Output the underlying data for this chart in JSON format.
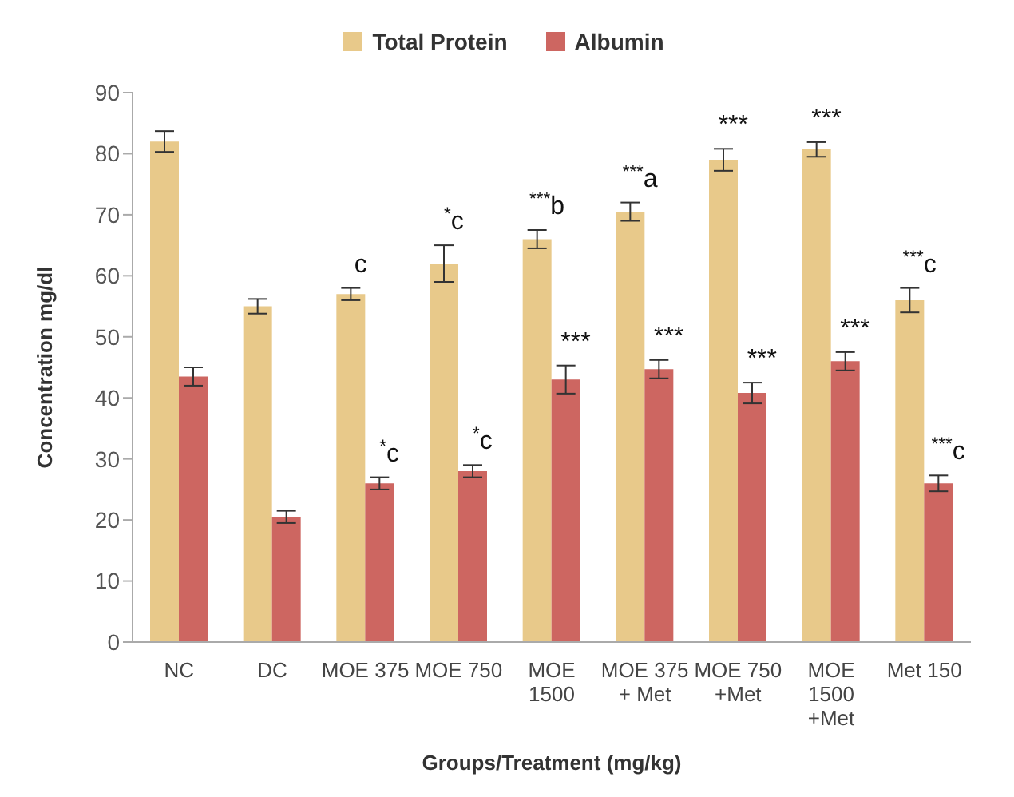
{
  "chart_data": {
    "type": "bar",
    "xlabel": "Groups/Treatment (mg/kg)",
    "ylabel": "Concentration mg/dl",
    "categories": [
      "NC",
      "DC",
      "MOE 375",
      "MOE 750",
      "MOE 1500",
      "MOE 375 + Met",
      "MOE 750 +Met",
      "MOE 1500 +Met",
      "Met 150"
    ],
    "series": [
      {
        "name": "Total Protein",
        "color": "#e8c98a",
        "values": [
          82,
          55,
          57,
          62,
          66,
          70.5,
          79,
          80.7,
          56
        ],
        "errors": [
          1.7,
          1.2,
          1,
          3,
          1.5,
          1.5,
          1.8,
          1.2,
          2
        ]
      },
      {
        "name": "Albumin",
        "color": "#cd6661",
        "values": [
          43.5,
          20.5,
          26,
          28,
          43,
          44.7,
          40.8,
          46,
          26
        ],
        "errors": [
          1.5,
          1,
          1,
          1,
          2.3,
          1.5,
          1.7,
          1.5,
          1.3
        ]
      }
    ],
    "ylim": [
      0,
      90
    ],
    "yticks": [
      0,
      10,
      20,
      30,
      40,
      50,
      60,
      70,
      80,
      90
    ],
    "grid": false,
    "legend": "top",
    "annotations": [
      {
        "text": "c",
        "x": "MOE 375",
        "y": 57
      },
      {
        "text": "$^{*}$c",
        "x": "MOE 750",
        "y": 62
      },
      {
        "text": "$^{***}$b",
        "x": "MOE 1500",
        "y": 66
      },
      {
        "text": "$^{***}$a",
        "x": "MOE 375 + Met",
        "y": 70.5
      },
      {
        "text": "***",
        "x": "MOE 750 +Met",
        "y": 79
      },
      {
        "text": "***",
        "x": "MOE 1500 +Met",
        "y": 80.7
      },
      {
        "text": "$^{***}$c",
        "x": "Met 150",
        "y": 56
      },
      {
        "text": "$^{*}$c",
        "x": "MOE 375",
        "y": 26
      },
      {
        "text": "$^{*}$c",
        "x": "MOE 750",
        "y": 28
      },
      {
        "text": "***",
        "x": "MOE 1500",
        "y": 43
      },
      {
        "text": "***",
        "x": "MOE 375 + Met",
        "y": 44.7
      },
      {
        "text": "***",
        "x": "MOE 750 +Met",
        "y": 40.8
      },
      {
        "text": "***",
        "x": "MOE 1500 +Met",
        "y": 46
      },
      {
        "text": "$^{***}$c",
        "x": "Met 150",
        "y": 26
      }
    ]
  }
}
